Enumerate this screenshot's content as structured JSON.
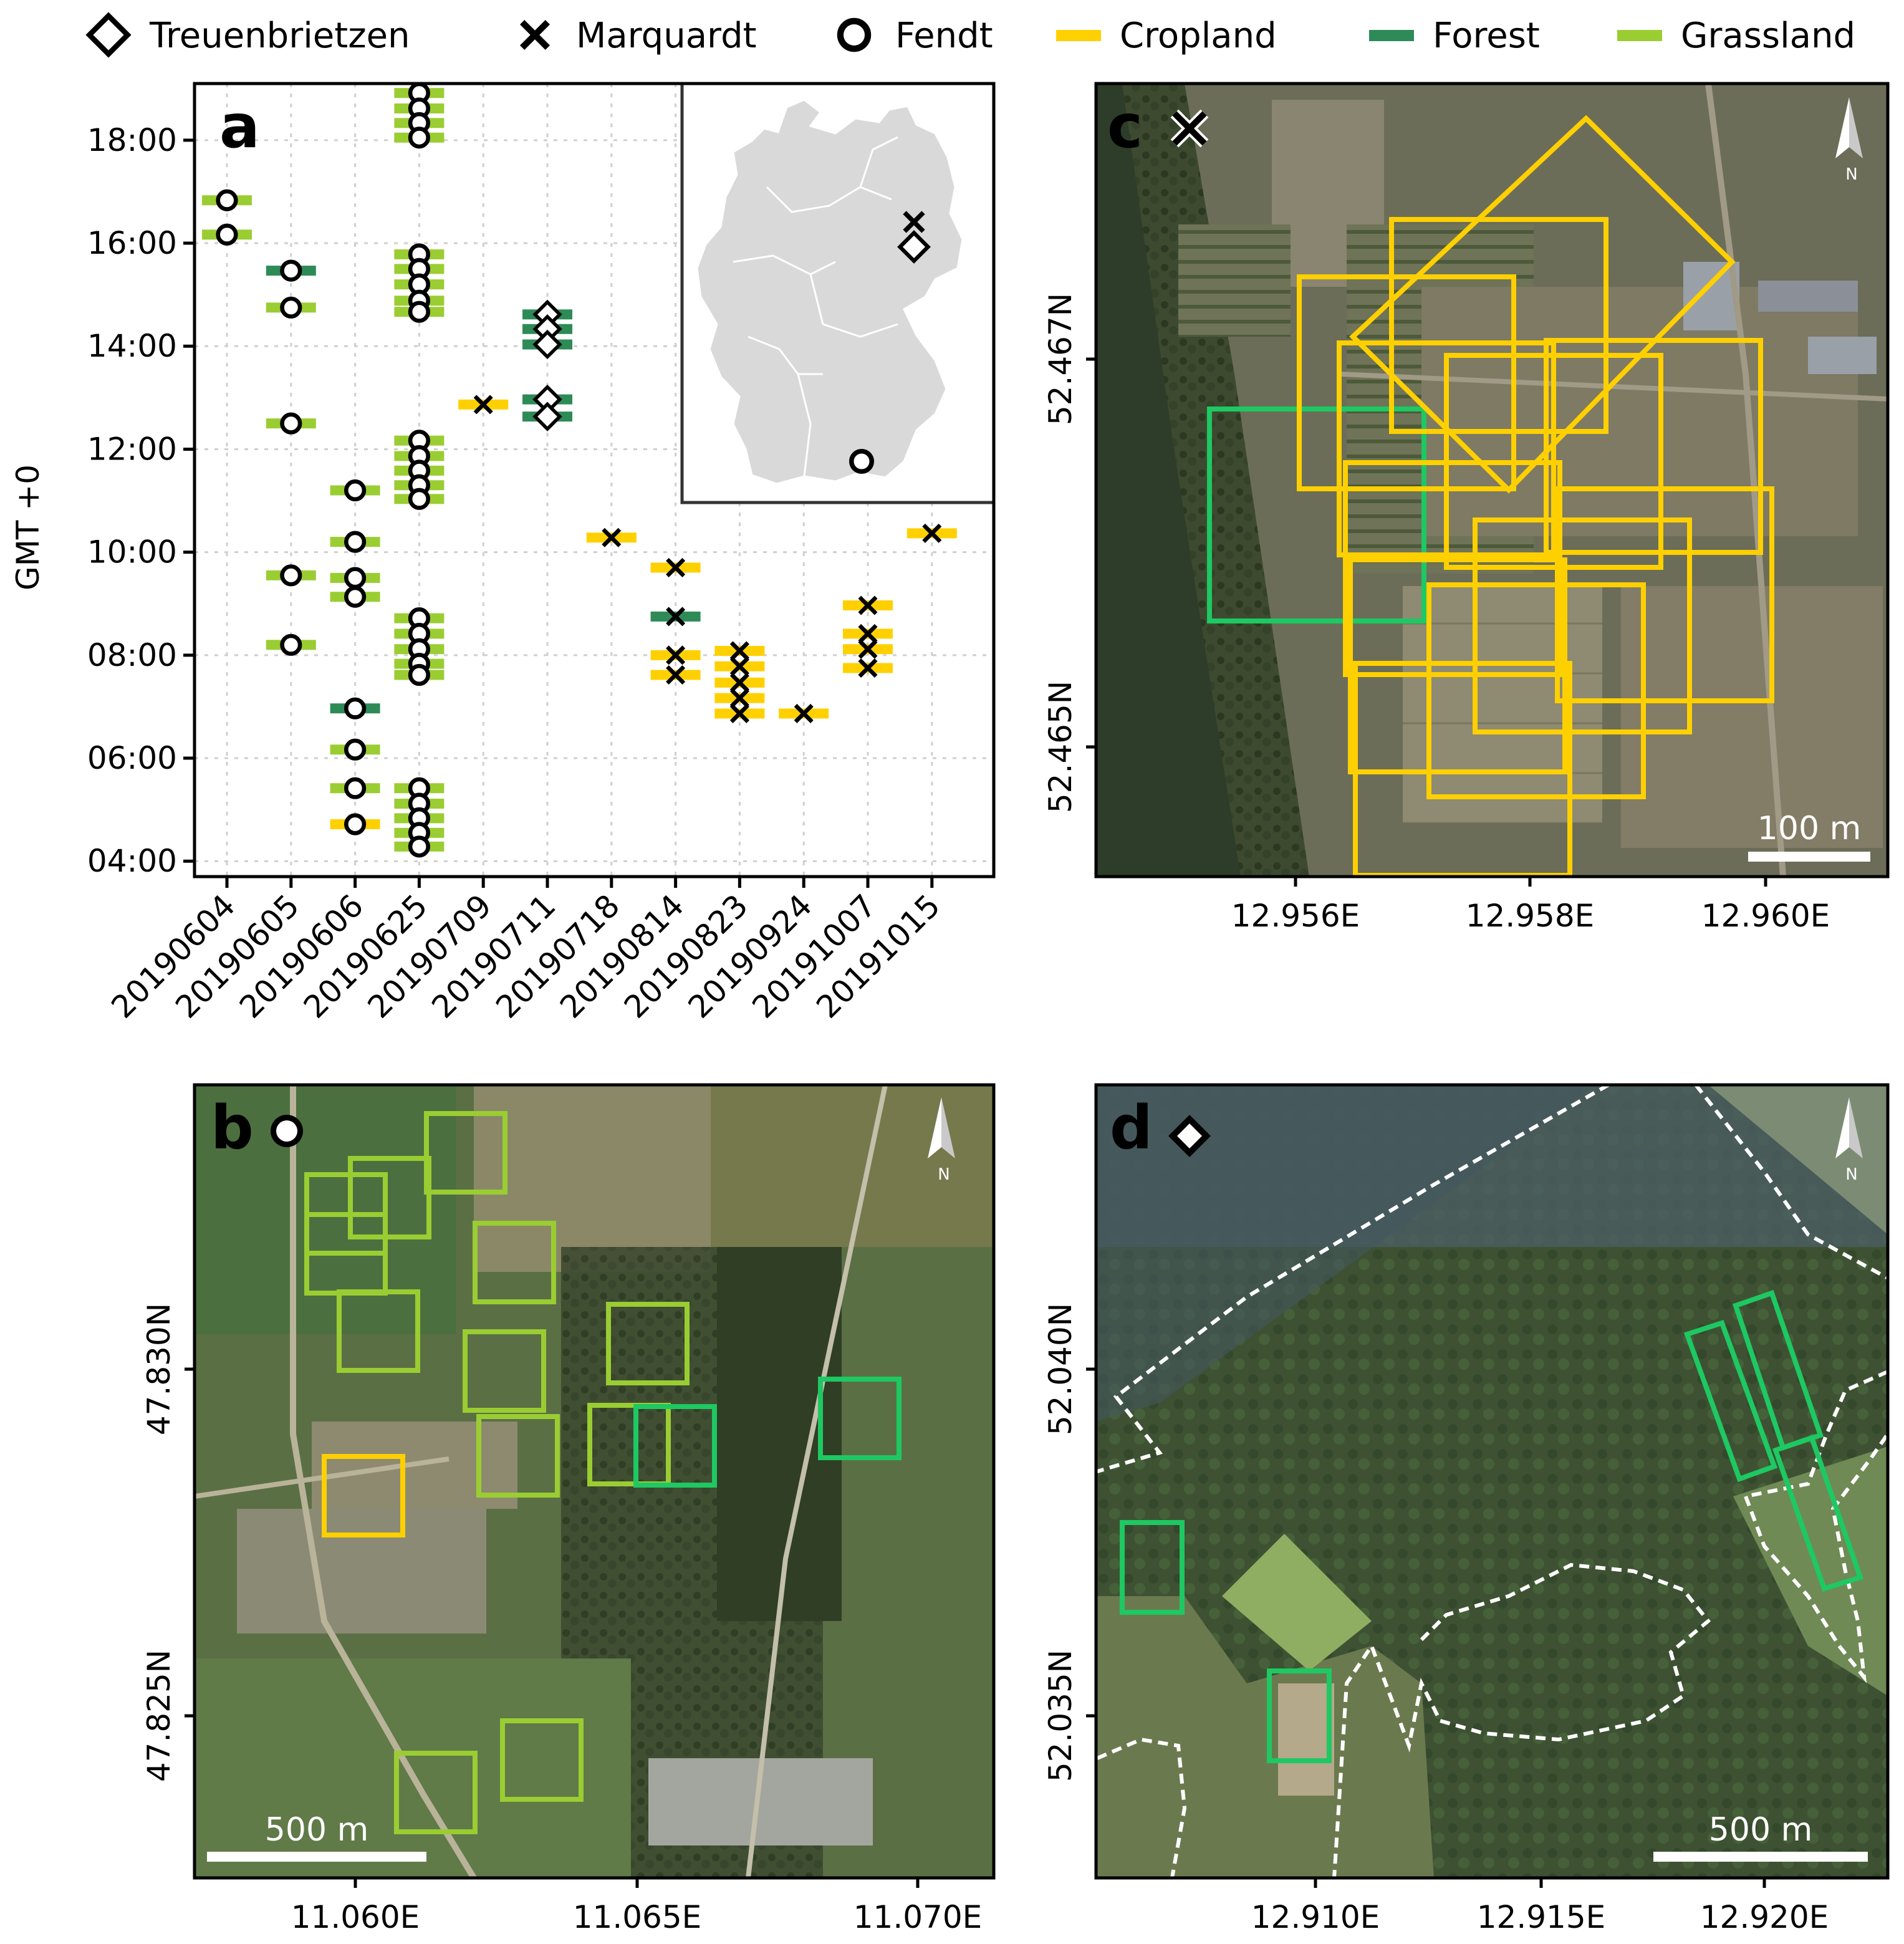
{
  "legend": [
    {
      "label": "Treuenbrietzen",
      "kind": "marker",
      "marker": "diamond"
    },
    {
      "label": "Marquardt",
      "kind": "marker",
      "marker": "cross"
    },
    {
      "label": "Fendt",
      "kind": "marker",
      "marker": "circle"
    },
    {
      "label": "Cropland",
      "kind": "swatch",
      "color": "#ffd000"
    },
    {
      "label": "Forest",
      "kind": "swatch",
      "color": "#2e8b57"
    },
    {
      "label": "Grassland",
      "kind": "swatch",
      "color": "#9acd32"
    }
  ],
  "colors": {
    "Cropland": "#ffd000",
    "Forest": "#2e8b57",
    "Grassland": "#9acd32",
    "box_forest": "#1ec862",
    "box_grass": "#9acd32",
    "box_crop": "#ffd000"
  },
  "chart_data": [
    {
      "panel": "a",
      "type": "scatter",
      "ylabel": "GMT +0",
      "categories": [
        "20190604",
        "20190605",
        "20190606",
        "20190625",
        "20190709",
        "20190711",
        "20190718",
        "20190814",
        "20190823",
        "20190924",
        "20191007",
        "20191015"
      ],
      "y_ticks": [
        "04:00",
        "06:00",
        "08:00",
        "10:00",
        "12:00",
        "14:00",
        "16:00",
        "18:00"
      ],
      "ylim_hours": [
        3.7,
        19.1
      ],
      "grid": true,
      "points": [
        {
          "date": "20190604",
          "site": "Fendt",
          "marker": "circle",
          "lc": "Grassland",
          "times": [
            "16:50",
            "16:10"
          ]
        },
        {
          "date": "20190605",
          "site": "Fendt",
          "marker": "circle",
          "lc": "Forest",
          "times": [
            "15:28"
          ]
        },
        {
          "date": "20190605",
          "site": "Fendt",
          "marker": "circle",
          "lc": "Grassland",
          "times": [
            "14:45",
            "12:30",
            "09:33",
            "08:12"
          ]
        },
        {
          "date": "20190606",
          "site": "Fendt",
          "marker": "circle",
          "lc": "Grassland",
          "times": [
            "11:12",
            "10:12",
            "09:30",
            "09:08",
            "06:10",
            "05:25"
          ]
        },
        {
          "date": "20190606",
          "site": "Fendt",
          "marker": "circle",
          "lc": "Forest",
          "times": [
            "06:58"
          ]
        },
        {
          "date": "20190606",
          "site": "Fendt",
          "marker": "circle",
          "lc": "Cropland",
          "times": [
            "04:43"
          ]
        },
        {
          "date": "20190625",
          "site": "Fendt",
          "marker": "circle",
          "lc": "Grassland",
          "times": [
            "18:55",
            "18:37",
            "18:20",
            "18:03",
            "15:47",
            "15:30",
            "15:12",
            "14:53",
            "14:40",
            "12:10",
            "11:52",
            "11:35",
            "11:18",
            "11:02",
            "08:43",
            "08:25",
            "08:07",
            "07:50",
            "07:37",
            "05:25",
            "05:07",
            "04:50",
            "04:33",
            "04:17"
          ]
        },
        {
          "date": "20190709",
          "site": "Marquardt",
          "marker": "cross",
          "lc": "Cropland",
          "times": [
            "12:52"
          ]
        },
        {
          "date": "20190711",
          "site": "Treuenbrietzen",
          "marker": "diamond",
          "lc": "Forest",
          "times": [
            "14:37",
            "14:20",
            "14:02",
            "12:58",
            "12:38"
          ]
        },
        {
          "date": "20190718",
          "site": "Marquardt",
          "marker": "cross",
          "lc": "Cropland",
          "times": [
            "10:17"
          ]
        },
        {
          "date": "20190814",
          "site": "Marquardt",
          "marker": "cross",
          "lc": "Cropland",
          "times": [
            "09:42",
            "08:00",
            "07:37"
          ]
        },
        {
          "date": "20190814",
          "site": "Marquardt",
          "marker": "cross",
          "lc": "Forest",
          "times": [
            "08:45"
          ]
        },
        {
          "date": "20190823",
          "site": "Marquardt",
          "marker": "cross",
          "lc": "Cropland",
          "times": [
            "08:05",
            "07:47",
            "07:28",
            "07:10",
            "06:52"
          ]
        },
        {
          "date": "20190924",
          "site": "Marquardt",
          "marker": "cross",
          "lc": "Cropland",
          "times": [
            "06:52"
          ]
        },
        {
          "date": "20191007",
          "site": "Marquardt",
          "marker": "cross",
          "lc": "Cropland",
          "times": [
            "08:58",
            "08:25",
            "08:07",
            "07:45"
          ]
        },
        {
          "date": "20191015",
          "site": "Marquardt",
          "marker": "cross",
          "lc": "Cropland",
          "times": [
            "10:22"
          ]
        }
      ],
      "inset": {
        "type": "map",
        "sites": [
          {
            "marker": "cross",
            "site": "Marquardt"
          },
          {
            "marker": "diamond",
            "site": "Treuenbrietzen"
          },
          {
            "marker": "circle",
            "site": "Fendt"
          }
        ]
      }
    },
    {
      "panel": "c",
      "type": "map",
      "site_marker": "cross",
      "x_ticks": [
        "12.956E",
        "12.958E",
        "12.960E"
      ],
      "y_ticks": [
        "52.467N",
        "52.465N"
      ],
      "scale_bar": "100 m",
      "boxes": [
        {
          "lc": "Forest"
        },
        {
          "lc": "Cropland",
          "count": 12
        }
      ]
    },
    {
      "panel": "b",
      "type": "map",
      "site_marker": "circle",
      "x_ticks": [
        "11.060E",
        "11.065E",
        "11.070E"
      ],
      "y_ticks": [
        "47.830N",
        "47.825N"
      ],
      "scale_bar": "500 m",
      "boxes": [
        {
          "lc": "Grassland",
          "count": 14
        },
        {
          "lc": "Cropland",
          "count": 1
        },
        {
          "lc": "Forest",
          "count": 2
        }
      ]
    },
    {
      "panel": "d",
      "type": "map",
      "site_marker": "diamond",
      "x_ticks": [
        "12.910E",
        "12.915E",
        "12.920E"
      ],
      "y_ticks": [
        "52.040N",
        "52.035N"
      ],
      "scale_bar": "500 m",
      "boxes": [
        {
          "lc": "Forest",
          "count": 5
        }
      ]
    }
  ],
  "panels": {
    "a": {
      "letter": "a"
    },
    "b": {
      "letter": "b",
      "scale": "500 m",
      "compass": "N"
    },
    "c": {
      "letter": "c",
      "scale": "100 m",
      "compass": "N"
    },
    "d": {
      "letter": "d",
      "scale": "500 m",
      "compass": "N"
    }
  }
}
